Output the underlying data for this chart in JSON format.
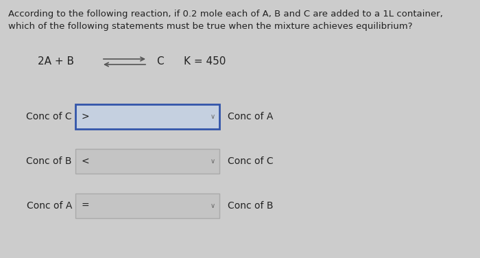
{
  "background_color": "#cccccc",
  "title_line1": "According to the following reaction, if 0.2 mole each of A, B and C are added to a 1L container,",
  "title_line2": "which of the following statements must be true when the mixture achieves equilibrium?",
  "equation_left": "2A + B",
  "equation_product": "C",
  "equation_k": "K = 450",
  "rows": [
    {
      "left_label": "Conc of C",
      "operator": ">",
      "right_label": "Conc of A",
      "box_highlighted": true
    },
    {
      "left_label": "Conc of B",
      "operator": "<",
      "right_label": "Conc of C",
      "box_highlighted": false
    },
    {
      "left_label": "Conc of A",
      "operator": "=",
      "right_label": "Conc of B",
      "box_highlighted": false
    }
  ],
  "box_color_highlighted": "#c5d0e0",
  "box_color_normal": "#c4c4c4",
  "box_border_highlighted": "#3355aa",
  "box_border_normal": "#aaaaaa",
  "text_color": "#222222",
  "font_size_title": 9.5,
  "font_size_equation": 11,
  "font_size_labels": 10,
  "font_size_operator": 10
}
